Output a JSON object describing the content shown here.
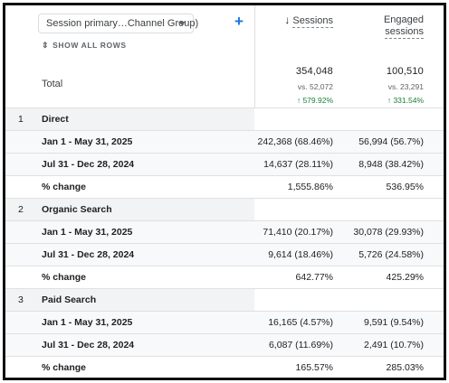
{
  "dimension_selector": {
    "label": "Session primary…Channel Group)",
    "icon": "chevron-down-icon"
  },
  "add_button": {
    "label": "+"
  },
  "show_all_rows": {
    "label": "SHOW ALL ROWS",
    "icon": "expand-collapse-icon"
  },
  "columns": {
    "sessions": {
      "label": "Sessions",
      "sort_icon": "↓"
    },
    "engaged_sessions": {
      "line1": "Engaged",
      "line2": "sessions"
    }
  },
  "total": {
    "label": "Total",
    "sessions": {
      "value": "354,048",
      "vs": "vs. 52,072",
      "change": "↑ 579.92%"
    },
    "engaged_sessions": {
      "value": "100,510",
      "vs": "vs. 23,291",
      "change": "↑ 331.54%"
    }
  },
  "groups": [
    {
      "index": "1",
      "name": "Direct",
      "rows": [
        {
          "label": "Jan 1 - May 31, 2025",
          "sessions": "242,368 (68.46%)",
          "engaged": "56,994 (56.7%)"
        },
        {
          "label": "Jul 31 - Dec 28, 2024",
          "sessions": "14,637 (28.11%)",
          "engaged": "8,948 (38.42%)"
        },
        {
          "label": "% change",
          "sessions": "1,555.86%",
          "engaged": "536.95%"
        }
      ]
    },
    {
      "index": "2",
      "name": "Organic Search",
      "rows": [
        {
          "label": "Jan 1 - May 31, 2025",
          "sessions": "71,410 (20.17%)",
          "engaged": "30,078 (29.93%)"
        },
        {
          "label": "Jul 31 - Dec 28, 2024",
          "sessions": "9,614 (18.46%)",
          "engaged": "5,726 (24.58%)"
        },
        {
          "label": "% change",
          "sessions": "642.77%",
          "engaged": "425.29%"
        }
      ]
    },
    {
      "index": "3",
      "name": "Paid Search",
      "rows": [
        {
          "label": "Jan 1 - May 31, 2025",
          "sessions": "16,165 (4.57%)",
          "engaged": "9,591 (9.54%)"
        },
        {
          "label": "Jul 31 - Dec 28, 2024",
          "sessions": "6,087 (11.69%)",
          "engaged": "2,491 (10.7%)"
        },
        {
          "label": "% change",
          "sessions": "165.57%",
          "engaged": "285.03%"
        }
      ]
    }
  ],
  "colors": {
    "positive_change": "#188038",
    "accent": "#1a73e8",
    "group_row_bg": "#f1f3f4"
  }
}
